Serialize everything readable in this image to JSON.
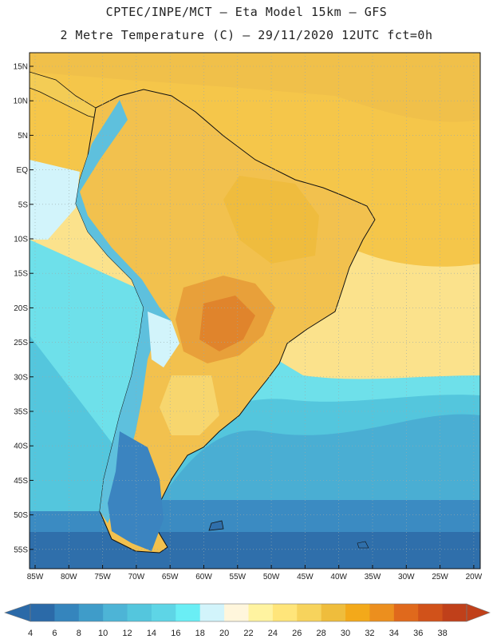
{
  "title_line1": "CPTEC/INPE/MCT  –  Eta Model 15km  –  GFS",
  "title_line2": "2 Metre Temperature (C) – 29/11/2020 12UTC fct=0h",
  "lat_labels": [
    "15N",
    "10N",
    "5N",
    "EQ",
    "5S",
    "10S",
    "15S",
    "20S",
    "25S",
    "30S",
    "35S",
    "40S",
    "45S",
    "50S",
    "55S"
  ],
  "lon_labels": [
    "85W",
    "80W",
    "75W",
    "70W",
    "65W",
    "60W",
    "55W",
    "50W",
    "45W",
    "40W",
    "35W",
    "30W",
    "25W",
    "20W"
  ],
  "colorbar": {
    "labels": [
      "4",
      "6",
      "8",
      "10",
      "12",
      "14",
      "16",
      "18",
      "20",
      "22",
      "24",
      "26",
      "28",
      "30",
      "32",
      "34",
      "36",
      "38"
    ],
    "colors": [
      "#2b6aa8",
      "#3585bd",
      "#3f9cc9",
      "#4db4d6",
      "#54c6dd",
      "#5ed5e6",
      "#6aeef5",
      "#d2f4fb",
      "#fff6dc",
      "#fff3a0",
      "#ffe57a",
      "#f7d35c",
      "#efbd3c",
      "#f3a91a",
      "#ec8f1e",
      "#e0691c",
      "#d1521a",
      "#c0401a"
    ]
  },
  "colors": {
    "ocean_warm": "#f5c64a",
    "ocean_mild": "#fbe28c",
    "ocean_cool": "#54c6dd",
    "ocean_cold": "#2f6fab",
    "land_hot": "#e89a30"
  }
}
